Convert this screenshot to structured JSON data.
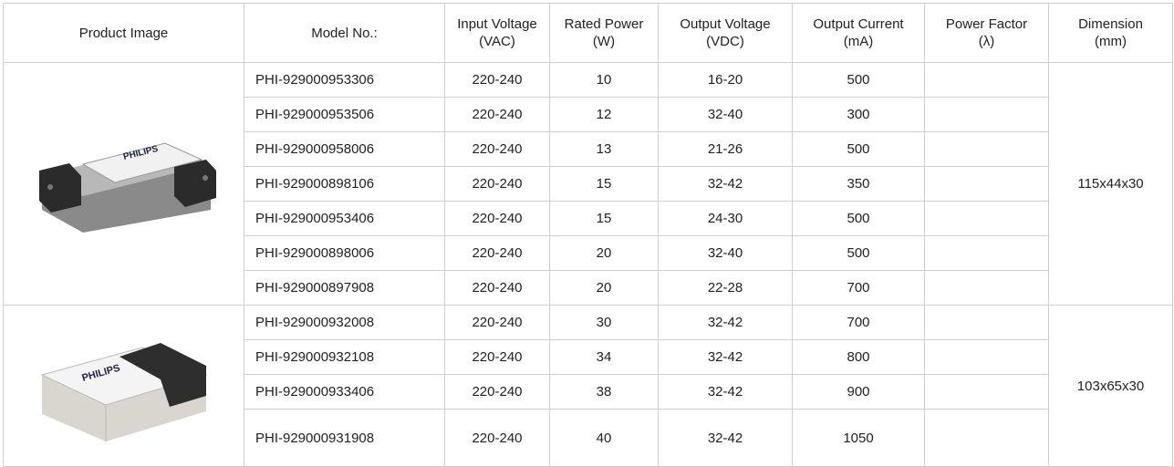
{
  "header": [
    [
      "Product Image"
    ],
    [
      "Model No.:"
    ],
    [
      "Input Voltage",
      "(VAC)"
    ],
    [
      "Rated Power",
      "(W)"
    ],
    [
      "Output Voltage",
      "(VDC)"
    ],
    [
      "Output Current",
      "(mA)"
    ],
    [
      "Power Factor",
      "(λ)"
    ],
    [
      "Dimension",
      "(mm)"
    ]
  ],
  "groups": [
    {
      "image_brand": "PHILIPS",
      "dimension": "115x44x30",
      "rows": [
        [
          "PHI-929000953306",
          "220-240",
          "10",
          "16-20",
          "500"
        ],
        [
          "PHI-929000953506",
          "220-240",
          "12",
          "32-40",
          "300"
        ],
        [
          "PHI-929000958006",
          "220-240",
          "13",
          "21-26",
          "500"
        ],
        [
          "PHI-929000898106",
          "220-240",
          "15",
          "32-42",
          "350"
        ],
        [
          "PHI-929000953406",
          "220-240",
          "15",
          "24-30",
          "500"
        ],
        [
          "PHI-929000898006",
          "220-240",
          "20",
          "32-40",
          "500"
        ],
        [
          "PHI-929000897908",
          "220-240",
          "20",
          "22-28",
          "700"
        ]
      ]
    },
    {
      "image_brand": "PHILIPS",
      "dimension": "103x65x30",
      "rows": [
        [
          "PHI-929000932008",
          "220-240",
          "30",
          "32-42",
          "700"
        ],
        [
          "PHI-929000932108",
          "220-240",
          "34",
          "32-42",
          "800"
        ],
        [
          "PHI-929000933406",
          "220-240",
          "38",
          "32-42",
          "900"
        ],
        [
          "PHI-929000931908",
          "220-240",
          "40",
          "32-42",
          "1050"
        ]
      ]
    }
  ]
}
